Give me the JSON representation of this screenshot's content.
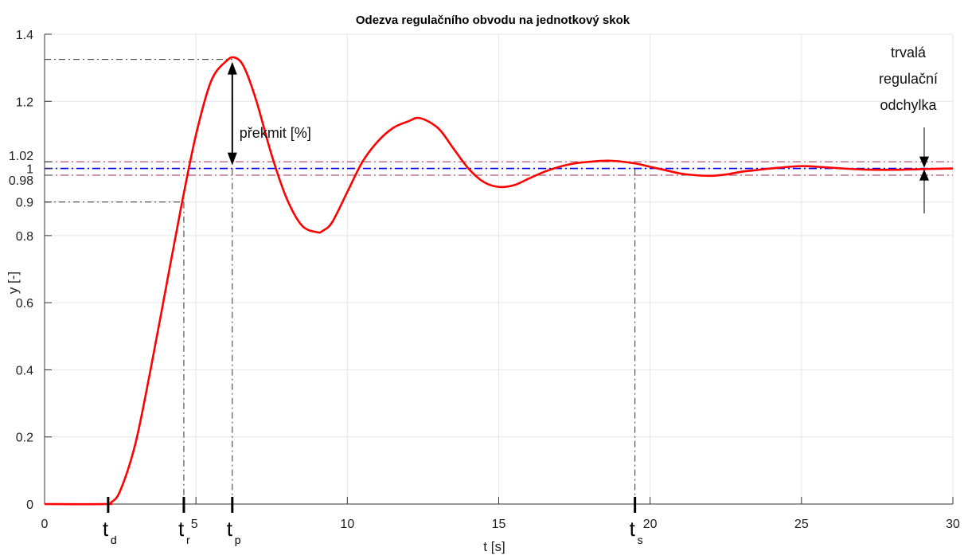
{
  "chart_data": {
    "type": "line",
    "title": "Odezva regulačního obvodu na jednotkový skok",
    "xlabel": "t [s]",
    "ylabel": "y [-]",
    "xlim": [
      0,
      30
    ],
    "ylim": [
      0,
      1.4
    ],
    "grid": true,
    "xticks": [
      0,
      5,
      10,
      15,
      20,
      25,
      30
    ],
    "yticks": [
      0,
      0.2,
      0.4,
      0.6,
      0.8,
      0.9,
      0.98,
      1,
      1.02,
      1.2,
      1.4
    ],
    "ytick_labels": [
      "0",
      "0.2",
      "0.4",
      "0.6",
      "0.8",
      "0.9",
      "0.98",
      "1",
      "1.02",
      "1.2",
      "1.4"
    ],
    "series": [
      {
        "color": "#ff0000",
        "x": [
          0,
          2.0,
          2.2,
          2.5,
          3.0,
          3.5,
          4.0,
          4.5,
          5.0,
          5.5,
          6.0,
          6.3,
          6.6,
          7.0,
          7.5,
          8.0,
          8.5,
          9.0,
          9.2,
          9.5,
          10.0,
          10.5,
          11.0,
          11.5,
          12.0,
          12.4,
          13.0,
          13.5,
          14.0,
          14.5,
          15.0,
          15.5,
          16.0,
          16.5,
          17.0,
          17.5,
          18.0,
          18.7,
          19.5,
          20.0,
          20.5,
          21.0,
          21.5,
          22.0,
          22.5,
          23.0,
          23.5,
          24.0,
          25.0,
          26.0,
          27.0,
          28.0,
          29.0,
          30.0
        ],
        "y": [
          0,
          0,
          0.005,
          0.04,
          0.18,
          0.4,
          0.64,
          0.88,
          1.1,
          1.26,
          1.32,
          1.33,
          1.3,
          1.2,
          1.04,
          0.91,
          0.83,
          0.81,
          0.815,
          0.84,
          0.93,
          1.02,
          1.08,
          1.12,
          1.14,
          1.15,
          1.12,
          1.06,
          1.0,
          0.96,
          0.945,
          0.95,
          0.97,
          0.99,
          1.005,
          1.015,
          1.02,
          1.023,
          1.015,
          1.005,
          0.995,
          0.985,
          0.98,
          0.978,
          0.982,
          0.99,
          0.995,
          1.0,
          1.007,
          1.002,
          0.997,
          0.996,
          0.998,
          1.0
        ]
      }
    ],
    "reference_lines": [
      {
        "y": 1.0,
        "color": "#0000ff",
        "style": "dash-dot"
      },
      {
        "y": 1.02,
        "color": "#a0304a",
        "style": "dash-dot"
      },
      {
        "y": 0.98,
        "color": "#a0304a",
        "style": "dash-dot"
      }
    ],
    "characteristic_times": [
      {
        "label": "t",
        "sub": "d",
        "x": 2.1
      },
      {
        "label": "t",
        "sub": "r",
        "x": 4.6
      },
      {
        "label": "t",
        "sub": "p",
        "x": 6.2
      },
      {
        "label": "t",
        "sub": "s",
        "x": 19.5
      }
    ],
    "annotations": {
      "overshoot": "překmit [%]",
      "steady_state_line1": "trvalá",
      "steady_state_line2": "regulační",
      "steady_state_line3": "odchylka"
    },
    "peak_value": 1.325,
    "rise_value": 0.9
  }
}
